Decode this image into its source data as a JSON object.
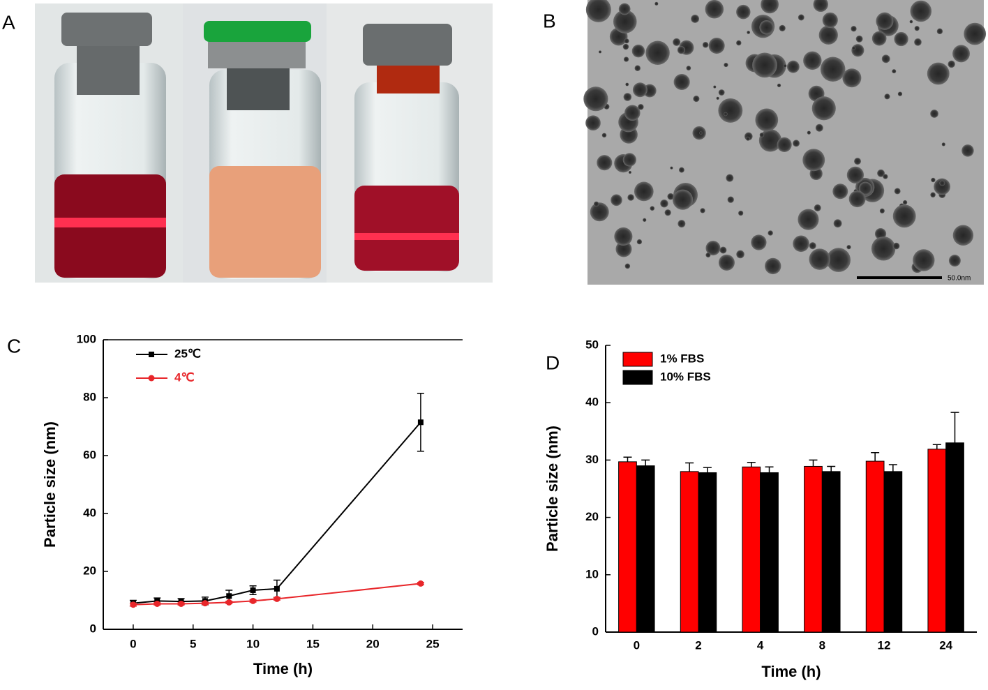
{
  "images": [
    {
      "panel_label": "A"
    },
    {
      "panel_label": "B",
      "scale_bar_label": "50.0nm"
    }
  ],
  "chart_data": [
    {
      "type": "line",
      "panel_label": "C",
      "x_label": "Time (h)",
      "y_label": "Particle size (nm)",
      "x": [
        0,
        2,
        4,
        6,
        8,
        10,
        12,
        24
      ],
      "series": [
        {
          "name": "25℃",
          "color": "#000000",
          "values": [
            9,
            9.8,
            9.6,
            9.8,
            11.5,
            13.5,
            14,
            71.5
          ],
          "errors": [
            1,
            1,
            1,
            1.3,
            2,
            1.5,
            3,
            10
          ]
        },
        {
          "name": "4℃",
          "color": "#e8262a",
          "values": [
            8.5,
            8.8,
            8.8,
            9,
            9.3,
            9.8,
            10.5,
            15.8
          ],
          "errors": [
            0.5,
            0.4,
            0.4,
            0.4,
            0.4,
            0.4,
            0.4,
            0.4
          ]
        }
      ],
      "xlim": [
        -2.5,
        27.5
      ],
      "xticks": [
        0,
        5,
        10,
        15,
        20,
        25
      ],
      "ylim": [
        0,
        100
      ],
      "yticks": [
        0,
        20,
        40,
        60,
        80,
        100
      ]
    },
    {
      "type": "bar",
      "panel_label": "D",
      "x_label": "Time (h)",
      "y_label": "Particle size (nm)",
      "categories": [
        "0",
        "2",
        "4",
        "8",
        "12",
        "24"
      ],
      "series": [
        {
          "name": "1% FBS",
          "color": "#ff0000",
          "values": [
            29.7,
            28,
            28.8,
            28.9,
            29.8,
            31.9
          ],
          "errors": [
            0.8,
            1.5,
            0.8,
            1.1,
            1.5,
            0.8
          ]
        },
        {
          "name": "10% FBS",
          "color": "#000000",
          "values": [
            29,
            27.8,
            27.8,
            28,
            28,
            33
          ],
          "errors": [
            1,
            0.9,
            1,
            0.9,
            1.2,
            5.3
          ]
        }
      ],
      "ylim": [
        0,
        50
      ],
      "yticks": [
        0,
        10,
        20,
        30,
        40,
        50
      ]
    }
  ]
}
